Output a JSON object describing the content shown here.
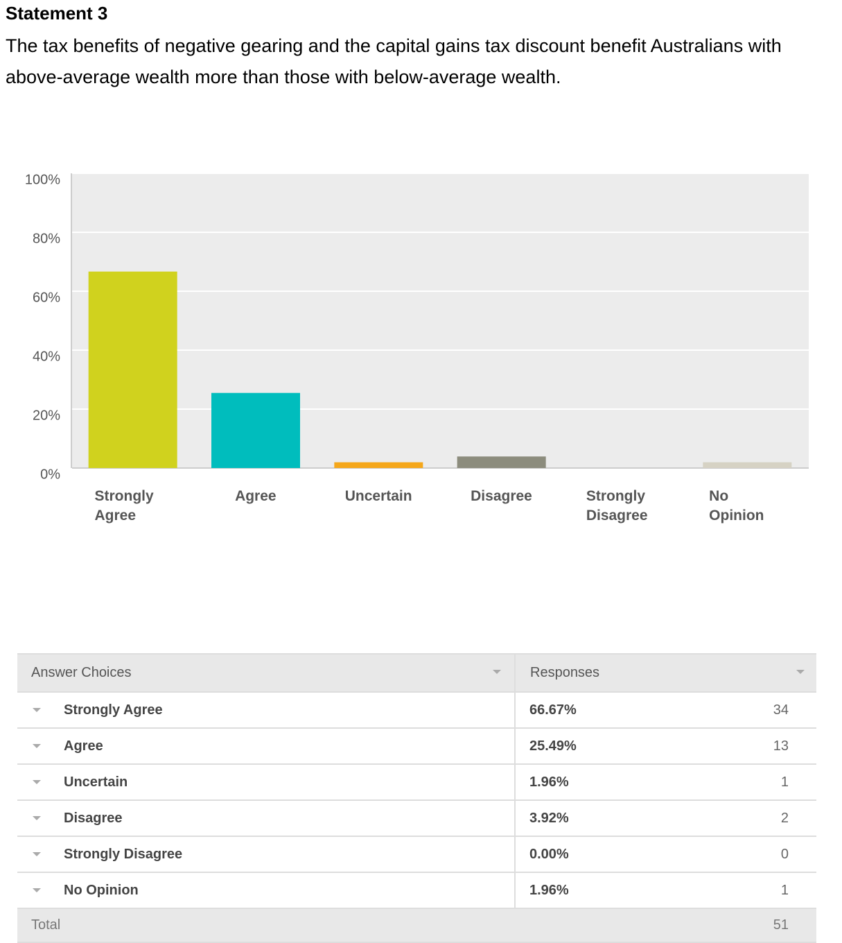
{
  "heading": "Statement 3",
  "statement": "The tax benefits of negative gearing and the capital gains tax discount benefit Australians with above-average wealth more than those with below-average wealth.",
  "chart_data": {
    "type": "bar",
    "categories": [
      "Strongly Agree",
      "Agree",
      "Uncertain",
      "Disagree",
      "Strongly Disagree",
      "No Opinion"
    ],
    "values": [
      66.67,
      25.49,
      1.96,
      3.92,
      0,
      1.96
    ],
    "colors": [
      "#d0d21e",
      "#00bdbd",
      "#f5a71a",
      "#8c8c7d",
      "#bbbbbb",
      "#d6d2c4"
    ],
    "ylim": [
      0,
      100
    ],
    "yticks": [
      {
        "value": 0,
        "label": "0%"
      },
      {
        "value": 20,
        "label": "20%"
      },
      {
        "value": 40,
        "label": "40%"
      },
      {
        "value": 60,
        "label": "60%"
      },
      {
        "value": 80,
        "label": "80%"
      },
      {
        "value": 100,
        "label": "100%"
      }
    ],
    "grid": true
  },
  "table": {
    "headers": [
      "Answer Choices",
      "Responses"
    ],
    "rows": [
      [
        "Strongly Agree",
        "66.67%",
        34
      ],
      [
        "Agree",
        "25.49%",
        13
      ],
      [
        "Uncertain",
        "1.96%",
        1
      ],
      [
        "Disagree",
        "3.92%",
        2
      ],
      [
        "Strongly Disagree",
        "0.00%",
        0
      ],
      [
        "No Opinion",
        "1.96%",
        1
      ]
    ],
    "total": {
      "label": "Total",
      "count": 51
    }
  }
}
